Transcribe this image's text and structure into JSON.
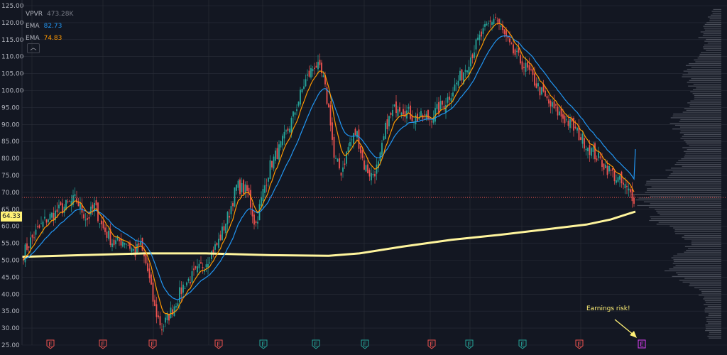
{
  "legend": {
    "vpvr_label": "VPVR",
    "vpvr_value": "473.28K",
    "ema1_label": "EMA",
    "ema1_value": "82.73",
    "ema2_label": "EMA",
    "ema2_value": "74.83",
    "collapse_icon": "chevron-up-icon"
  },
  "price_tag": "64.33",
  "annotation": {
    "text": "Earnings risk!"
  },
  "colors": {
    "background": "#131722",
    "grid": "#2a2e39",
    "up": "#26a69a",
    "down": "#ef5350",
    "ema_fast": "#ff9800",
    "ema_slow": "#2196f3",
    "sma_long": "#fff59d",
    "volume_profile": "#787b86",
    "earnings_future": "#e040fb"
  },
  "chart_data": {
    "type": "candlestick",
    "y_axis": {
      "range": [
        25,
        125
      ],
      "ticks": [
        "25.00",
        "30.00",
        "35.00",
        "40.00",
        "45.00",
        "50.00",
        "55.00",
        "60.00",
        "65.00",
        "70.00",
        "75.00",
        "80.00",
        "85.00",
        "90.00",
        "95.00",
        "100.00",
        "105.00",
        "110.00",
        "115.00",
        "120.00",
        "125.00"
      ]
    },
    "grid": true,
    "price_path": [
      [
        0,
        52
      ],
      [
        0.02,
        56
      ],
      [
        0.06,
        62
      ],
      [
        0.1,
        65
      ],
      [
        0.14,
        68
      ],
      [
        0.17,
        62
      ],
      [
        0.19,
        66
      ],
      [
        0.21,
        60
      ],
      [
        0.24,
        55
      ],
      [
        0.27,
        56
      ],
      [
        0.3,
        52
      ],
      [
        0.31,
        55
      ],
      [
        0.33,
        48
      ],
      [
        0.35,
        36
      ],
      [
        0.37,
        30
      ],
      [
        0.4,
        36
      ],
      [
        0.43,
        43
      ],
      [
        0.46,
        46
      ],
      [
        0.49,
        50
      ],
      [
        0.52,
        55
      ],
      [
        0.55,
        64
      ],
      [
        0.57,
        72
      ],
      [
        0.6,
        70
      ],
      [
        0.62,
        60
      ],
      [
        0.64,
        70
      ],
      [
        0.66,
        78
      ],
      [
        0.69,
        84
      ],
      [
        0.72,
        92
      ],
      [
        0.75,
        102
      ],
      [
        0.78,
        108
      ],
      [
        0.8,
        104
      ],
      [
        0.82,
        92
      ],
      [
        0.83,
        80
      ],
      [
        0.85,
        76
      ],
      [
        0.87,
        84
      ],
      [
        0.89,
        88
      ],
      [
        0.91,
        78
      ],
      [
        0.93,
        75
      ],
      [
        0.95,
        78
      ],
      [
        0.97,
        90
      ],
      [
        1.0,
        96
      ]
    ],
    "price_path_2": [
      [
        0,
        96
      ],
      [
        0.03,
        92
      ],
      [
        0.06,
        92
      ],
      [
        0.09,
        97
      ],
      [
        0.12,
        105
      ],
      [
        0.15,
        115
      ],
      [
        0.18,
        122
      ],
      [
        0.21,
        112
      ],
      [
        0.24,
        106
      ],
      [
        0.28,
        96
      ],
      [
        0.32,
        90
      ],
      [
        0.36,
        82
      ],
      [
        0.4,
        75
      ],
      [
        0.44,
        68
      ]
    ],
    "ema_fast_last": 74.83,
    "ema_slow_last": 82.73,
    "sma_long": [
      [
        0,
        51
      ],
      [
        0.1,
        51.5
      ],
      [
        0.2,
        52
      ],
      [
        0.3,
        52
      ],
      [
        0.4,
        51.5
      ],
      [
        0.5,
        51.3
      ],
      [
        0.55,
        52
      ],
      [
        0.62,
        54
      ],
      [
        0.7,
        56
      ],
      [
        0.78,
        57.5
      ],
      [
        0.85,
        59
      ],
      [
        0.92,
        60.5
      ],
      [
        0.96,
        62
      ],
      [
        1,
        64.33
      ]
    ],
    "last_price": 68.5,
    "volume_profile_peak_price": 69,
    "earnings_markers": [
      {
        "label": "E",
        "type": "down"
      },
      {
        "label": "E",
        "type": "down"
      },
      {
        "label": "E",
        "type": "down"
      },
      {
        "label": "E",
        "type": "down"
      },
      {
        "label": "E",
        "type": "up"
      },
      {
        "label": "E",
        "type": "up"
      },
      {
        "label": "E",
        "type": "up"
      },
      {
        "label": "E",
        "type": "down"
      },
      {
        "label": "E",
        "type": "up"
      },
      {
        "label": "E",
        "type": "up"
      },
      {
        "label": "E",
        "type": "down"
      },
      {
        "label": "E",
        "type": "future"
      }
    ]
  }
}
